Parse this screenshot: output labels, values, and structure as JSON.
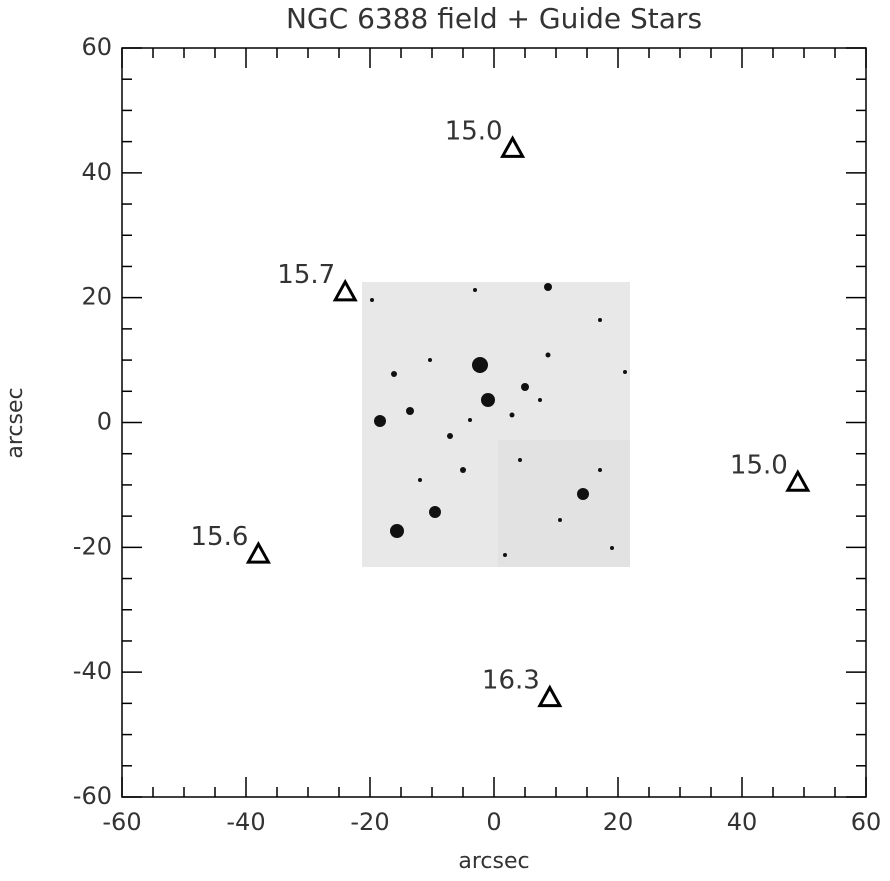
{
  "chart_data": {
    "type": "scatter",
    "title": "NGC 6388 field  + Guide Stars",
    "x_label": "arcsec",
    "y_label": "arcsec",
    "series": [
      {
        "marker": "triangle",
        "color": "#000000",
        "x": [
          3,
          -24,
          49,
          -38,
          9
        ],
        "values": [
          44,
          21,
          -9.5,
          -21,
          -44
        ],
        "labels": [
          "15.0",
          "15.7",
          "15.0",
          "15.6",
          "16.3"
        ]
      }
    ],
    "xlim": [
      -60,
      60
    ],
    "ylim": [
      -60,
      60
    ],
    "xticks": [
      -60,
      -40,
      -20,
      0,
      20,
      40,
      60
    ],
    "yticks": [
      -60,
      -40,
      -20,
      0,
      20,
      40,
      60
    ],
    "xminorticks": [
      -55,
      -50,
      -45,
      -35,
      -30,
      -25,
      -15,
      -10,
      -5,
      5,
      10,
      15,
      25,
      30,
      35,
      45,
      50,
      55
    ],
    "yminorticks": [
      -55,
      -50,
      -45,
      -35,
      -30,
      -25,
      -15,
      -10,
      -5,
      5,
      10,
      15,
      25,
      30,
      35,
      45,
      50,
      55
    ]
  }
}
